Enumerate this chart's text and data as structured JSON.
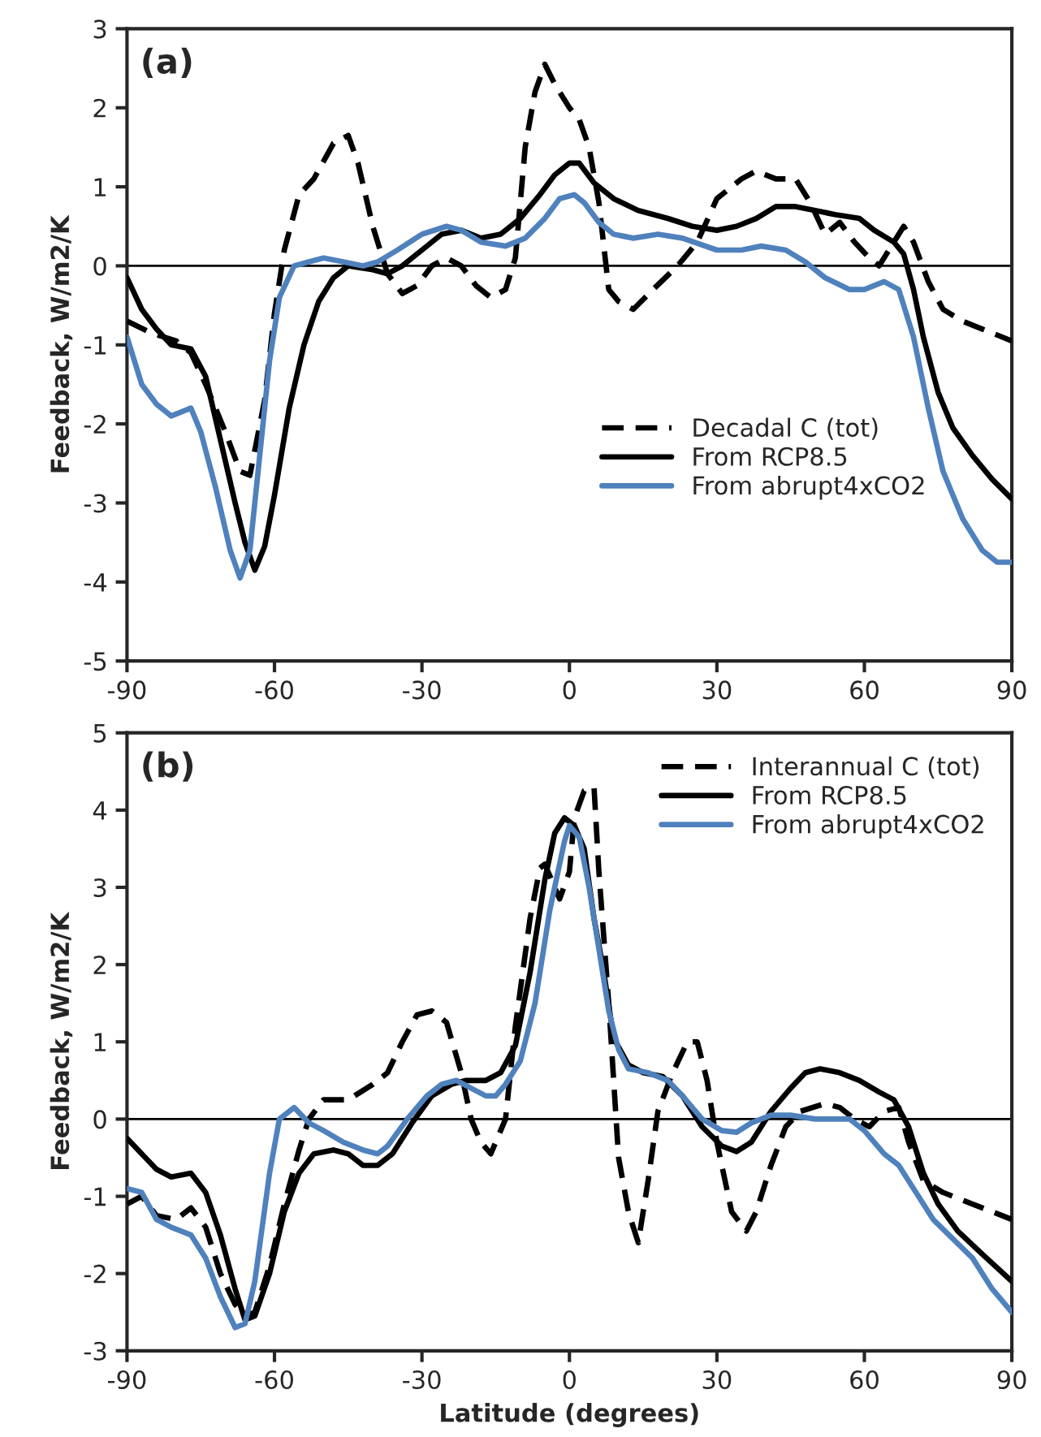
{
  "chart_data": [
    {
      "type": "line",
      "xlabel": null,
      "ylabel": "Feedback, W/m2/K",
      "annotations": [
        "(a)"
      ],
      "xlim": [
        -90,
        90
      ],
      "xticks": [
        -90,
        -60,
        -30,
        0,
        30,
        60,
        90
      ],
      "ylim": [
        -5,
        3
      ],
      "yticks": [
        -5,
        -4,
        -3,
        -2,
        -1,
        0,
        1,
        2,
        3
      ],
      "grid": false,
      "legend": "center right",
      "marker": "none",
      "ref_lines": [
        {
          "axis": "y",
          "value": 0,
          "color": "#000000",
          "line_style": "solid"
        }
      ],
      "series": [
        {
          "name": "Decadal C (tot)",
          "color": "#000000",
          "line_style": "dashed",
          "x": [
            -90,
            -85,
            -80,
            -77,
            -74,
            -70,
            -67,
            -65,
            -62,
            -60,
            -58,
            -55,
            -52,
            -48,
            -45,
            -43,
            -40,
            -37,
            -34,
            -31,
            -28,
            -25,
            -22,
            -19,
            -16,
            -13,
            -11,
            -9,
            -7,
            -5,
            -3,
            0,
            2,
            4,
            6,
            8,
            10,
            13,
            17,
            22,
            26,
            30,
            35,
            38,
            42,
            46,
            49,
            52,
            55,
            58,
            61,
            63,
            66,
            68,
            70,
            73,
            76,
            80,
            84,
            90
          ],
          "values": [
            -0.7,
            -0.85,
            -0.95,
            -1.1,
            -1.5,
            -2.1,
            -2.6,
            -2.65,
            -1.7,
            -0.6,
            0.2,
            0.9,
            1.1,
            1.55,
            1.65,
            1.3,
            0.5,
            -0.1,
            -0.35,
            -0.25,
            0,
            0.1,
            0,
            -0.25,
            -0.4,
            -0.3,
            0.1,
            1.5,
            2.2,
            2.55,
            2.3,
            2.0,
            1.85,
            1.5,
            0.8,
            -0.3,
            -0.45,
            -0.55,
            -0.3,
            0,
            0.3,
            0.85,
            1.1,
            1.2,
            1.1,
            1.1,
            0.8,
            0.4,
            0.55,
            0.3,
            0.1,
            0,
            0.3,
            0.5,
            0.3,
            -0.2,
            -0.55,
            -0.7,
            -0.8,
            -0.95
          ]
        },
        {
          "name": "From RCP8.5",
          "color": "#000000",
          "line_style": "solid",
          "x": [
            -90,
            -87,
            -84,
            -81,
            -77,
            -74,
            -71,
            -68,
            -66,
            -64,
            -62,
            -60,
            -57,
            -54,
            -51,
            -48,
            -45,
            -40,
            -37,
            -34,
            -30,
            -26,
            -22,
            -18,
            -14,
            -10,
            -6,
            -3,
            0,
            2,
            5,
            9,
            14,
            20,
            25,
            30,
            34,
            38,
            42,
            46,
            50,
            54,
            59,
            62,
            66,
            68,
            70,
            72,
            75,
            78,
            82,
            86,
            90
          ],
          "values": [
            -0.15,
            -0.55,
            -0.8,
            -1.0,
            -1.05,
            -1.4,
            -2.2,
            -3.0,
            -3.5,
            -3.85,
            -3.55,
            -2.9,
            -1.8,
            -1.0,
            -0.45,
            -0.15,
            0,
            -0.05,
            -0.1,
            0,
            0.2,
            0.4,
            0.45,
            0.35,
            0.4,
            0.6,
            0.9,
            1.15,
            1.3,
            1.3,
            1.05,
            0.85,
            0.7,
            0.6,
            0.5,
            0.45,
            0.5,
            0.6,
            0.75,
            0.75,
            0.7,
            0.65,
            0.6,
            0.45,
            0.3,
            0.15,
            -0.3,
            -0.9,
            -1.6,
            -2.05,
            -2.4,
            -2.7,
            -2.95
          ]
        },
        {
          "name": "From abrupt4xCO2",
          "color": "#4f81bd",
          "line_style": "solid",
          "x": [
            -90,
            -87,
            -84,
            -81,
            -77,
            -75,
            -72,
            -69,
            -67,
            -65,
            -63,
            -61,
            -59,
            -56,
            -53,
            -50,
            -46,
            -42,
            -39,
            -35,
            -30,
            -25,
            -22,
            -18,
            -13,
            -9,
            -5,
            -2,
            1,
            3,
            6,
            9,
            13,
            18,
            23,
            30,
            35,
            39,
            44,
            48,
            52,
            57,
            60,
            64,
            67,
            70,
            73,
            76,
            80,
            84,
            87,
            90
          ],
          "values": [
            -0.9,
            -1.5,
            -1.75,
            -1.9,
            -1.8,
            -2.1,
            -2.8,
            -3.6,
            -3.95,
            -3.6,
            -2.4,
            -1.2,
            -0.4,
            0,
            0.05,
            0.1,
            0.05,
            0,
            0.05,
            0.2,
            0.4,
            0.5,
            0.45,
            0.3,
            0.25,
            0.35,
            0.6,
            0.85,
            0.9,
            0.8,
            0.55,
            0.4,
            0.35,
            0.4,
            0.35,
            0.2,
            0.2,
            0.25,
            0.2,
            0.05,
            -0.15,
            -0.3,
            -0.3,
            -0.2,
            -0.3,
            -0.9,
            -1.8,
            -2.6,
            -3.2,
            -3.6,
            -3.75,
            -3.75
          ]
        }
      ]
    },
    {
      "type": "line",
      "xlabel": "Latitude (degrees)",
      "ylabel": "Feedback, W/m2/K",
      "annotations": [
        "(b)"
      ],
      "xlim": [
        -90,
        90
      ],
      "xticks": [
        -90,
        -60,
        -30,
        0,
        30,
        60,
        90
      ],
      "ylim": [
        -3,
        5
      ],
      "yticks": [
        -3,
        -2,
        -1,
        0,
        1,
        2,
        3,
        4,
        5
      ],
      "grid": false,
      "legend": "top right",
      "marker": "none",
      "ref_lines": [
        {
          "axis": "y",
          "value": 0,
          "color": "#000000",
          "line_style": "solid"
        }
      ],
      "series": [
        {
          "name": "Interannual C (tot)",
          "color": "#000000",
          "line_style": "dashed",
          "x": [
            -90,
            -87,
            -84,
            -80,
            -77,
            -74,
            -71,
            -68,
            -66,
            -64,
            -61,
            -58,
            -55,
            -53,
            -50,
            -45,
            -40,
            -37,
            -34,
            -31,
            -28,
            -25,
            -22,
            -20,
            -18,
            -16,
            -13,
            -11,
            -8,
            -6,
            -5,
            -3,
            -2,
            0,
            1,
            3,
            5,
            6,
            8,
            10,
            12,
            14,
            16,
            18,
            21,
            24,
            26,
            28,
            30,
            33,
            36,
            38,
            41,
            44,
            47,
            52,
            55,
            58,
            61,
            64,
            67,
            69,
            72,
            76,
            82,
            90
          ],
          "values": [
            -1.1,
            -1.0,
            -1.25,
            -1.3,
            -1.15,
            -1.4,
            -2.0,
            -2.4,
            -2.55,
            -2.5,
            -1.9,
            -1.1,
            -0.4,
            0,
            0.25,
            0.25,
            0.45,
            0.6,
            1.0,
            1.35,
            1.4,
            1.25,
            0.6,
            0,
            -0.3,
            -0.45,
            0,
            1.2,
            2.6,
            3.25,
            3.3,
            3.0,
            2.85,
            3.2,
            3.9,
            4.25,
            4.3,
            3.2,
            1.5,
            -0.5,
            -1.2,
            -1.6,
            -0.8,
            0.1,
            0.6,
            1.0,
            1.0,
            0.5,
            -0.3,
            -1.2,
            -1.45,
            -1.2,
            -0.6,
            -0.1,
            0.1,
            0.2,
            0.15,
            0,
            -0.1,
            0.1,
            0.15,
            -0.3,
            -0.8,
            -0.95,
            -1.1,
            -1.3
          ]
        },
        {
          "name": "From RCP8.5",
          "color": "#000000",
          "line_style": "solid",
          "x": [
            -90,
            -87,
            -84,
            -81,
            -77,
            -74,
            -71,
            -68,
            -66,
            -64,
            -61,
            -58,
            -55,
            -52,
            -48,
            -45,
            -42,
            -39,
            -36,
            -32,
            -28,
            -24,
            -21,
            -17,
            -14,
            -11,
            -8,
            -5,
            -3,
            -1,
            1,
            3,
            5,
            7,
            9,
            12,
            15,
            19,
            23,
            27,
            31,
            34,
            37,
            41,
            45,
            48,
            51,
            55,
            59,
            63,
            66,
            69,
            72,
            75,
            79,
            84,
            90
          ],
          "values": [
            -0.25,
            -0.45,
            -0.65,
            -0.75,
            -0.7,
            -0.95,
            -1.5,
            -2.2,
            -2.6,
            -2.55,
            -2.0,
            -1.2,
            -0.7,
            -0.45,
            -0.4,
            -0.45,
            -0.6,
            -0.6,
            -0.45,
            -0.05,
            0.3,
            0.45,
            0.5,
            0.5,
            0.6,
            0.95,
            1.9,
            3.1,
            3.7,
            3.9,
            3.8,
            3.5,
            2.6,
            1.9,
            1.05,
            0.7,
            0.6,
            0.55,
            0.3,
            -0.1,
            -0.35,
            -0.42,
            -0.3,
            0.1,
            0.4,
            0.6,
            0.65,
            0.6,
            0.5,
            0.35,
            0.25,
            -0.1,
            -0.7,
            -1.1,
            -1.45,
            -1.75,
            -2.1
          ]
        },
        {
          "name": "From abrupt4xCO2",
          "color": "#4f81bd",
          "line_style": "solid",
          "x": [
            -90,
            -87,
            -84,
            -81,
            -77,
            -74,
            -71,
            -68,
            -66,
            -64,
            -61,
            -59,
            -56,
            -53,
            -50,
            -46,
            -42,
            -39,
            -37,
            -33,
            -29,
            -26,
            -23,
            -20,
            -17,
            -15,
            -13,
            -10,
            -7,
            -4,
            -1,
            0,
            2,
            4,
            6,
            8,
            10,
            12,
            16,
            20,
            23,
            27,
            31,
            34,
            37,
            41,
            45,
            50,
            57,
            60,
            64,
            67,
            70,
            74,
            78,
            82,
            86,
            90
          ],
          "values": [
            -0.9,
            -0.95,
            -1.3,
            -1.4,
            -1.5,
            -1.8,
            -2.3,
            -2.7,
            -2.65,
            -2.1,
            -0.7,
            0,
            0.15,
            -0.05,
            -0.15,
            -0.3,
            -0.4,
            -0.45,
            -0.35,
            0,
            0.3,
            0.45,
            0.5,
            0.4,
            0.3,
            0.3,
            0.45,
            0.75,
            1.5,
            2.7,
            3.6,
            3.8,
            3.65,
            3.0,
            2.2,
            1.4,
            0.9,
            0.65,
            0.6,
            0.5,
            0.3,
            0,
            -0.15,
            -0.17,
            -0.05,
            0.05,
            0.05,
            0,
            0,
            -0.15,
            -0.45,
            -0.6,
            -0.9,
            -1.3,
            -1.55,
            -1.8,
            -2.2,
            -2.5
          ]
        }
      ]
    }
  ]
}
